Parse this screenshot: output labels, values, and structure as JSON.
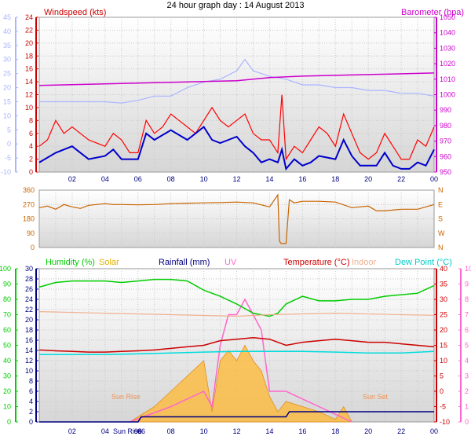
{
  "page": {
    "title": "24 hour graph day : 14 August 2013"
  },
  "colors": {
    "wind_avg": "#0000cc",
    "wind_gust": "#ff0000",
    "wind_dir": "#c86400",
    "barometer": "#cc00cc",
    "temp_left_axis": "#aab4ff",
    "humidity": "#00cc00",
    "solar": "#ffb830",
    "rainfall": "#000080",
    "uv": "#ff66cc",
    "temperature": "#cc0000",
    "indoor": "#f0b090",
    "dew_point": "#00dddd",
    "sun_text": "#f09050"
  },
  "x_ticks": [
    "02",
    "04",
    "06",
    "08",
    "10",
    "12",
    "14",
    "16",
    "18",
    "20",
    "22",
    "00"
  ],
  "chart_data": [
    {
      "type": "line",
      "panel": "wind",
      "legend_left": "Windspeed (kts)",
      "legend_right": "Barometer (hpa)",
      "y_left_ticks": [
        "0",
        "2",
        "4",
        "6",
        "8",
        "10",
        "12",
        "14",
        "16",
        "18",
        "20",
        "22",
        "24"
      ],
      "y_temp_ticks": [
        "-10",
        "-5",
        "0",
        "5",
        "10",
        "15",
        "20",
        "25",
        "30",
        "35",
        "40",
        "45"
      ],
      "y_right_ticks": [
        "950",
        "960",
        "970",
        "980",
        "990",
        "1000",
        "1010",
        "1020",
        "1030",
        "1040",
        "1050"
      ],
      "ylim_left": [
        0,
        24
      ],
      "ylim_right": [
        950,
        1050
      ],
      "ylim_temp": [
        -10,
        45
      ],
      "series": [
        {
          "name": "Windspeed (kts)",
          "x": [
            0,
            1,
            2,
            2.5,
            3,
            4,
            4.5,
            5,
            6,
            6.5,
            7,
            8,
            9,
            9.5,
            10,
            10.5,
            11,
            11.5,
            12,
            12.5,
            13,
            13.5,
            14,
            14.5,
            14.75,
            15,
            15.5,
            16,
            16.5,
            17,
            18,
            18.5,
            19,
            19.5,
            20,
            20.5,
            21,
            21.5,
            22,
            22.5,
            23,
            23.5,
            24
          ],
          "y": [
            1.5,
            3,
            4,
            3,
            2,
            2.5,
            3.5,
            2,
            2,
            6,
            5,
            6.5,
            5,
            6,
            7,
            5,
            4.5,
            5,
            5.5,
            4,
            3,
            1.5,
            2,
            1.5,
            3.5,
            0.5,
            2,
            1,
            1.5,
            2.5,
            2,
            5,
            2.5,
            1,
            1,
            1,
            3,
            1,
            0.5,
            0.5,
            1.5,
            1,
            3.5
          ]
        },
        {
          "name": "Gust",
          "x": [
            0,
            0.5,
            1,
            1.5,
            2,
            2.5,
            3,
            4,
            4.5,
            5,
            5.5,
            6,
            6.5,
            7,
            7.5,
            8,
            8.5,
            9,
            9.5,
            10,
            10.5,
            11,
            11.5,
            12,
            12.5,
            13,
            13.5,
            14,
            14.5,
            14.75,
            15,
            15.5,
            16,
            16.5,
            17,
            17.5,
            18,
            18.5,
            19,
            19.5,
            20,
            20.5,
            21,
            21.5,
            22,
            22.5,
            23,
            23.5,
            24
          ],
          "y": [
            4,
            5,
            8,
            6,
            7,
            6,
            5,
            4,
            6,
            5,
            3,
            3,
            8,
            6,
            7,
            9,
            8,
            7,
            6,
            8,
            10,
            8,
            7,
            8,
            9,
            6,
            5,
            5,
            3,
            12,
            2,
            4,
            3,
            5,
            7,
            6,
            4,
            9,
            6,
            3,
            2,
            3,
            6,
            4,
            2,
            2,
            5,
            4,
            7
          ]
        },
        {
          "name": "Barometer (hpa)",
          "axis": "right",
          "x": [
            0,
            4,
            8,
            12,
            14,
            16,
            20,
            24
          ],
          "y": [
            1006,
            1007,
            1008,
            1009,
            1011,
            1012,
            1013,
            1014
          ]
        },
        {
          "name": "Temperature (°C)",
          "axis": "temp",
          "x": [
            0,
            1,
            2,
            3,
            4,
            5,
            6,
            7,
            8,
            9,
            10,
            11,
            12,
            12.5,
            13,
            13.5,
            14,
            15,
            16,
            17,
            18,
            19,
            20,
            21,
            22,
            23,
            24
          ],
          "y": [
            15,
            15,
            15,
            15,
            15,
            14.5,
            15.5,
            17,
            17,
            20,
            22,
            23,
            26,
            30,
            26,
            25,
            24,
            23,
            21,
            21,
            20,
            20,
            19,
            19,
            18,
            18,
            17
          ]
        }
      ]
    },
    {
      "type": "line",
      "panel": "direction",
      "y_left_ticks": [
        "0",
        "90",
        "180",
        "270",
        "360"
      ],
      "y_right_labels": [
        "N",
        "W",
        "S",
        "E",
        "N"
      ],
      "ylim": [
        0,
        360
      ],
      "series": [
        {
          "name": "Wind direction",
          "x": [
            0,
            0.5,
            1,
            1.5,
            2,
            2.5,
            3,
            3.5,
            4,
            4.5,
            5,
            6,
            7,
            8,
            9,
            10,
            11,
            12,
            13,
            14,
            14.5,
            14.6,
            14.7,
            15,
            15.2,
            15.5,
            16,
            17,
            18,
            19,
            20,
            20.5,
            21,
            22,
            23,
            24
          ],
          "y": [
            250,
            260,
            240,
            270,
            255,
            245,
            265,
            270,
            275,
            270,
            270,
            268,
            270,
            275,
            278,
            280,
            282,
            285,
            280,
            255,
            330,
            40,
            25,
            25,
            300,
            280,
            290,
            290,
            285,
            250,
            260,
            230,
            230,
            240,
            240,
            270
          ]
        }
      ]
    },
    {
      "type": "line",
      "panel": "weather",
      "legends": [
        "Humidity (%)",
        "Solar",
        "Rainfall (mm)",
        "UV",
        "Temperature (°C)",
        "Indoor",
        "Dew Point (°C)"
      ],
      "y_hum_ticks": [
        "0",
        "10",
        "20",
        "30",
        "40",
        "50",
        "60",
        "70",
        "80",
        "90",
        "100"
      ],
      "y_solar_ticks": [
        "0",
        "2",
        "4",
        "6",
        "8",
        "10",
        "12",
        "14",
        "16",
        "18",
        "20",
        "22",
        "24",
        "26",
        "28",
        "30"
      ],
      "y_temp_ticks": [
        "-10",
        "-5",
        "0",
        "5",
        "10",
        "15",
        "20",
        "25",
        "30",
        "35",
        "40"
      ],
      "y_uv_ticks": [
        "0",
        "1",
        "2",
        "3",
        "4",
        "5",
        "6",
        "7",
        "8",
        "9",
        "10"
      ],
      "ylim_hum": [
        0,
        100
      ],
      "ylim_temp": [
        -10,
        40
      ],
      "ylim_uv": [
        0,
        10
      ],
      "annotations": [
        "Sun Rise",
        "Sun Set",
        "Sun Rise",
        "06"
      ],
      "series": [
        {
          "name": "Humidity (%)",
          "x": [
            0,
            1,
            2,
            3,
            4,
            5,
            6,
            7,
            8,
            9,
            10,
            11,
            12,
            13,
            14,
            14.5,
            15,
            16,
            17,
            18,
            19,
            20,
            21,
            22,
            23,
            24
          ],
          "y": [
            88,
            91,
            92,
            92,
            92,
            91,
            92,
            93,
            93,
            92,
            86,
            82,
            77,
            71,
            69,
            71,
            77,
            82,
            79,
            79,
            80,
            80,
            82,
            83,
            84,
            89
          ]
        },
        {
          "name": "Indoor",
          "x": [
            0,
            4,
            8,
            12,
            14,
            18,
            22,
            24
          ],
          "y": [
            26,
            25.5,
            25,
            24.5,
            25,
            25.5,
            25,
            24.8
          ]
        },
        {
          "name": "Temperature (°C)",
          "x": [
            0,
            1,
            2,
            3,
            4,
            5,
            6,
            7,
            8,
            9,
            10,
            11,
            12,
            13,
            14,
            15,
            16,
            17,
            18,
            19,
            20,
            21,
            22,
            23,
            24
          ],
          "y": [
            13.5,
            13.2,
            13,
            12.8,
            12.8,
            13,
            13.2,
            13.5,
            14,
            14.5,
            15,
            16.5,
            17,
            17.5,
            17,
            15,
            16,
            16.5,
            17,
            16.5,
            16,
            16,
            15.5,
            15,
            14.5
          ]
        },
        {
          "name": "Dew Point (°C)",
          "x": [
            0,
            2,
            4,
            6,
            8,
            10,
            12,
            14,
            16,
            18,
            20,
            22,
            24
          ],
          "y": [
            12,
            12,
            12,
            12.2,
            12.5,
            12.8,
            13,
            13,
            13,
            12.8,
            12.5,
            12.5,
            13
          ]
        },
        {
          "name": "Solar",
          "x": [
            5.5,
            6,
            7,
            8,
            9,
            10,
            10.5,
            11,
            11.5,
            12,
            12.5,
            13,
            13.5,
            14,
            14.5,
            15,
            16,
            17,
            18,
            18.5,
            19
          ],
          "y": [
            0,
            1,
            3,
            6,
            9,
            12,
            2,
            12,
            14,
            12,
            15,
            12,
            10,
            5,
            2,
            4,
            3,
            2,
            0.5,
            3,
            0
          ]
        },
        {
          "name": "UV",
          "x": [
            5.5,
            8,
            10,
            10.5,
            11,
            11.5,
            12,
            12.5,
            13,
            13.5,
            14,
            15,
            16,
            17,
            18,
            19
          ],
          "y": [
            0,
            1,
            2,
            1,
            5,
            7,
            7,
            8,
            7,
            6,
            2,
            2,
            1.5,
            1,
            0.5,
            0
          ]
        },
        {
          "name": "Rainfall (mm)",
          "x": [
            0,
            6,
            6.2,
            15,
            15.2,
            24
          ],
          "y": [
            0,
            0,
            1,
            1,
            2,
            2
          ]
        }
      ]
    }
  ]
}
